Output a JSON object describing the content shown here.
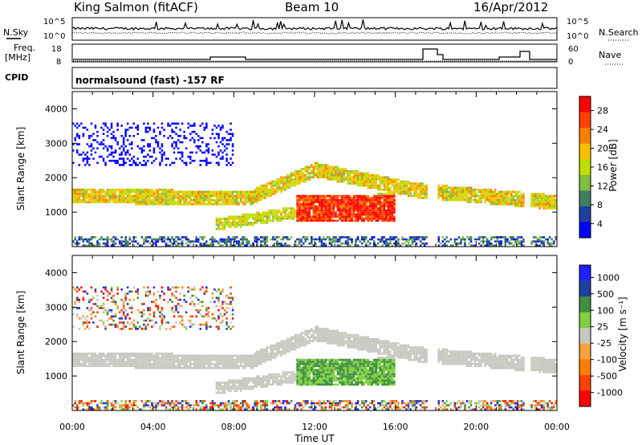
{
  "header": {
    "station": "King Salmon (fitACF)",
    "beam": "Beam 10",
    "date": "16/Apr/2012"
  },
  "top_labels": {
    "nsky": "N.Sky",
    "nsearch": "N.Search",
    "freq": "Freq.",
    "mhz": "[MHz]",
    "nave": "Nave",
    "cpid": "CPID",
    "cpid_value": "normalsound (fast) -157 RF",
    "noise_ticks": [
      "10^5",
      "10^0"
    ],
    "freq_ticks": [
      "18",
      "8"
    ],
    "nave_ticks": [
      "60",
      "0"
    ]
  },
  "colors": {
    "power": [
      "#0000ff",
      "#1f3f9f",
      "#3f7f5f",
      "#7fbf3f",
      "#bfdf00",
      "#ffbf00",
      "#ff8000",
      "#ff4000",
      "#ff0000"
    ],
    "velocity": [
      "#ff0000",
      "#ff4000",
      "#ff8000",
      "#ffa040",
      "#c8c8c0",
      "#7fcf3f",
      "#3f8f3f",
      "#2040a0",
      "#2020ff"
    ],
    "ground": "#c8c8c0"
  },
  "chart_data": [
    {
      "type": "heatmap",
      "name": "power",
      "ylabel": "Slant Range [km]",
      "xlabel": "Time UT",
      "x_ticks": [
        "00:00",
        "04:00",
        "08:00",
        "12:00",
        "16:00",
        "20:00",
        "00:00"
      ],
      "y_ticks": [
        "1000",
        "2000",
        "3000",
        "4000"
      ],
      "ylim": [
        0,
        4500
      ],
      "xlim_hours": [
        0,
        24
      ],
      "colorbar": {
        "label": "Power [dB]",
        "ticks": [
          "28",
          "24",
          "20",
          "16",
          "12",
          "8",
          "4"
        ],
        "range": [
          0,
          30
        ]
      }
    },
    {
      "type": "heatmap",
      "name": "velocity",
      "ylabel": "Slant Range [km]",
      "xlabel": "Time UT",
      "x_ticks": [
        "00:00",
        "04:00",
        "08:00",
        "12:00",
        "16:00",
        "20:00",
        "00:00"
      ],
      "y_ticks": [
        "1000",
        "2000",
        "3000",
        "4000"
      ],
      "ylim": [
        0,
        4500
      ],
      "colorbar": {
        "label": "Velocity [m s⁻¹]",
        "ticks": [
          "1000",
          "500",
          "100",
          "25",
          "-25",
          "-100",
          "-500",
          "-1000"
        ]
      }
    }
  ]
}
